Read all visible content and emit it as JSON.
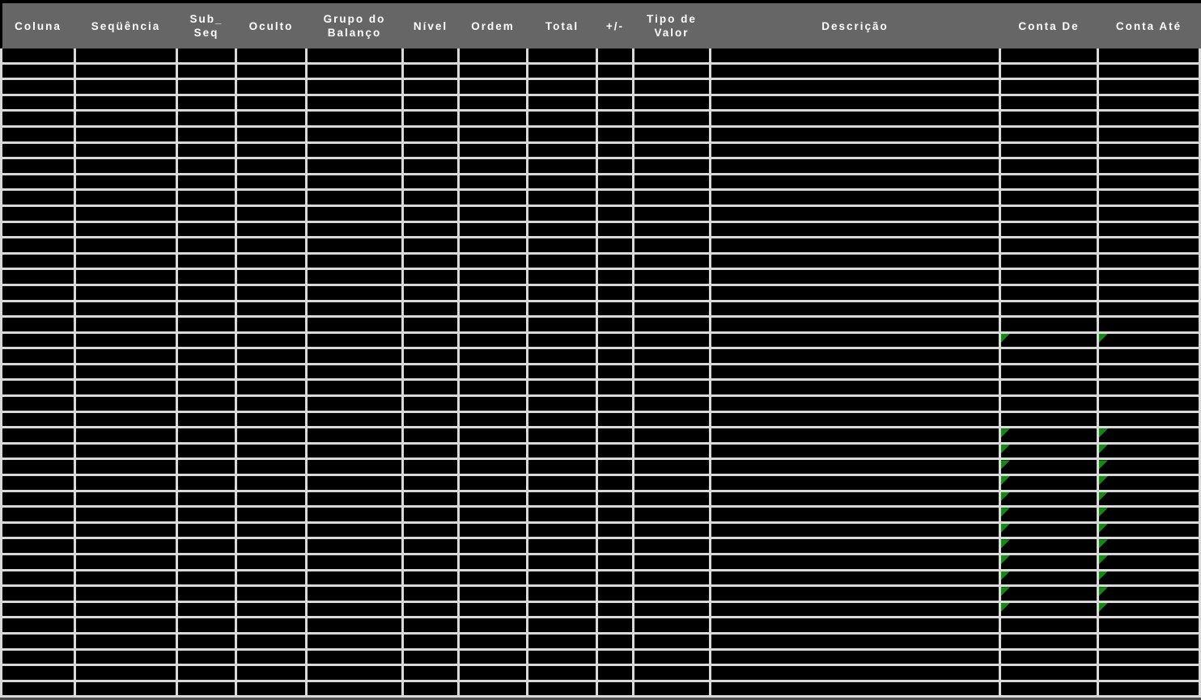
{
  "colors": {
    "header_bg": "#666666",
    "header_text": "#ffffff",
    "grid_line": "#d9d9d9",
    "cell_bg": "#000000",
    "marker_green": "#158815",
    "outer_border": "#000000",
    "bottom_edge": "#4d4d4d"
  },
  "table": {
    "columns": [
      {
        "id": "coluna",
        "label": "Coluna"
      },
      {
        "id": "sequencia",
        "label": "Seqüência"
      },
      {
        "id": "sub_seq",
        "label": "Sub_\nSeq"
      },
      {
        "id": "oculto",
        "label": "Oculto"
      },
      {
        "id": "grupo_do_balanco",
        "label": "Grupo do\nBalanço"
      },
      {
        "id": "nivel",
        "label": "Nível"
      },
      {
        "id": "ordem",
        "label": "Ordem"
      },
      {
        "id": "total",
        "label": "Total"
      },
      {
        "id": "mais_menos",
        "label": "+/-"
      },
      {
        "id": "tipo_de_valor",
        "label": "Tipo de\nValor"
      },
      {
        "id": "descricao",
        "label": "Descrição"
      },
      {
        "id": "conta_de",
        "label": "Conta De"
      },
      {
        "id": "conta_ate",
        "label": "Conta Até"
      }
    ],
    "rows": {
      "count": 41,
      "marker_rows_1based": [
        19,
        25,
        26,
        27,
        28,
        29,
        30,
        31,
        32,
        33,
        34,
        35,
        36
      ],
      "marker_column_ids": [
        "conta_de",
        "conta_ate"
      ],
      "marker_icon": "green-corner-triangle"
    }
  }
}
